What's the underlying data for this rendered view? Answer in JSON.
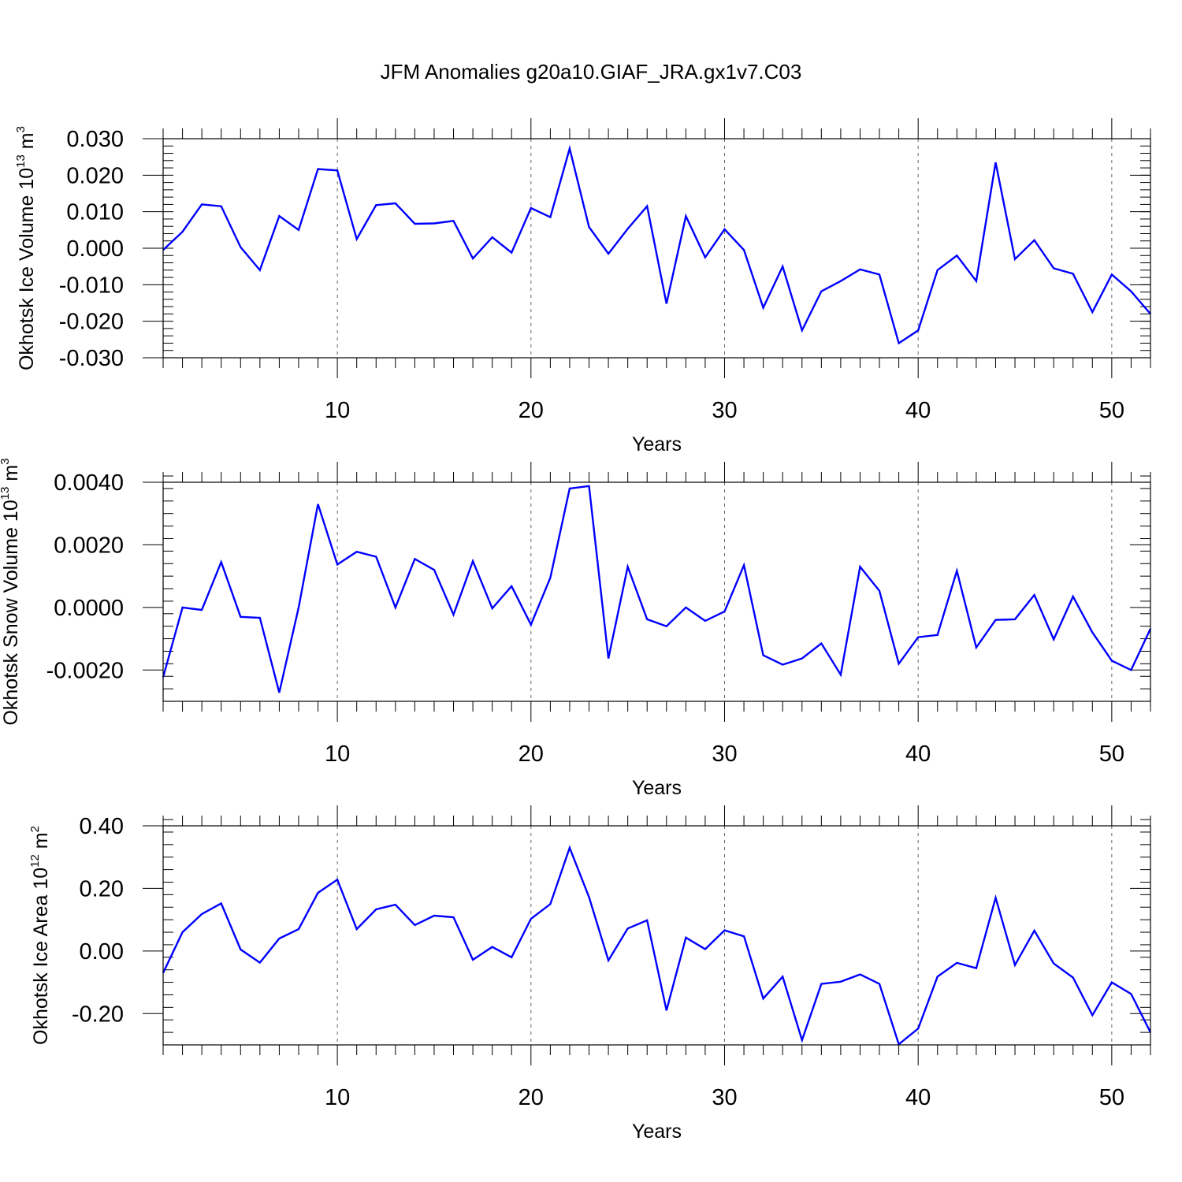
{
  "figure": {
    "title": "JFM Anomalies g20a10.GIAF_JRA.gx1v7.C03"
  },
  "chart_data": [
    {
      "type": "line",
      "ylabel_main": "Okhotsk Ice Volume 10",
      "ylabel_sup": "13",
      "ylabel_unit": " m",
      "ylabel_unit_sup": "3",
      "xlabel": "Years",
      "xlim": [
        1,
        52
      ],
      "ylim": [
        -0.03,
        0.03
      ],
      "yticks": [
        -0.03,
        -0.02,
        -0.01,
        0.0,
        0.01,
        0.02,
        0.03
      ],
      "ytick_labels": [
        "-0.030",
        "-0.020",
        "-0.010",
        "0.000",
        "0.010",
        "0.020",
        "0.030"
      ],
      "ydigits": 3,
      "yminor_step": 0.002,
      "xticks": [
        10,
        20,
        30,
        40,
        50
      ],
      "xtick_labels": [
        "10",
        "20",
        "30",
        "40",
        "50"
      ],
      "series": [
        {
          "name": "Okhotsk Ice Volume",
          "color": "#0000ff",
          "x": [
            1,
            2,
            3,
            4,
            5,
            6,
            7,
            8,
            9,
            10,
            11,
            12,
            13,
            14,
            15,
            16,
            17,
            18,
            19,
            20,
            21,
            22,
            23,
            24,
            25,
            26,
            27,
            28,
            29,
            30,
            31,
            32,
            33,
            34,
            35,
            36,
            37,
            38,
            39,
            40,
            41,
            42,
            43,
            44,
            45,
            46,
            47,
            48,
            49,
            50,
            51,
            52
          ],
          "values": [
            -0.0005,
            0.0045,
            0.012,
            0.0115,
            0.0003,
            -0.006,
            0.0088,
            0.005,
            0.0217,
            0.0213,
            0.0025,
            0.0118,
            0.0123,
            0.0067,
            0.0068,
            0.0075,
            -0.0028,
            0.003,
            -0.0012,
            0.011,
            0.0085,
            0.0273,
            0.0058,
            -0.0015,
            0.0053,
            0.0115,
            -0.0152,
            0.0088,
            -0.0025,
            0.0052,
            -0.0005,
            -0.0163,
            -0.005,
            -0.0225,
            -0.0118,
            -0.009,
            -0.0058,
            -0.0072,
            -0.026,
            -0.0225,
            -0.006,
            -0.002,
            -0.009,
            0.0235,
            -0.003,
            0.0022,
            -0.0055,
            -0.007,
            -0.0175,
            -0.0072,
            -0.0118,
            -0.018
          ]
        }
      ]
    },
    {
      "type": "line",
      "ylabel_main": "Okhotsk Snow Volume 10",
      "ylabel_sup": "13",
      "ylabel_unit": " m",
      "ylabel_unit_sup": "3",
      "xlabel": "Years",
      "xlim": [
        1,
        52
      ],
      "ylim": [
        -0.003,
        0.004
      ],
      "yticks": [
        -0.002,
        0.0,
        0.002,
        0.004
      ],
      "ytick_labels": [
        "-0.0020",
        "0.0000",
        "0.0020",
        "0.0040"
      ],
      "ydigits": 4,
      "yminor_step": 0.0004,
      "xticks": [
        10,
        20,
        30,
        40,
        50
      ],
      "xtick_labels": [
        "10",
        "20",
        "30",
        "40",
        "50"
      ],
      "series": [
        {
          "name": "Okhotsk Snow Volume",
          "color": "#0000ff",
          "x": [
            1,
            2,
            3,
            4,
            5,
            6,
            7,
            8,
            9,
            10,
            11,
            12,
            13,
            14,
            15,
            16,
            17,
            18,
            19,
            20,
            21,
            22,
            23,
            24,
            25,
            26,
            27,
            28,
            29,
            30,
            31,
            32,
            33,
            34,
            35,
            36,
            37,
            38,
            39,
            40,
            41,
            42,
            43,
            44,
            45,
            46,
            47,
            48,
            49,
            50,
            51,
            52
          ],
          "values": [
            -0.00223,
            0.0,
            -8e-05,
            0.00145,
            -0.0003,
            -0.00033,
            -0.00272,
            0.0,
            0.0033,
            0.00137,
            0.00178,
            0.00162,
            0.0,
            0.00155,
            0.0012,
            -0.00023,
            0.00148,
            -3e-05,
            0.00068,
            -0.00055,
            0.00095,
            0.0038,
            0.00388,
            -0.00163,
            0.0013,
            -0.00038,
            -0.0006,
            0.0,
            -0.00043,
            -0.00013,
            0.00135,
            -0.00153,
            -0.00183,
            -0.00163,
            -0.00115,
            -0.00215,
            0.0013,
            0.00053,
            -0.0018,
            -0.00095,
            -0.00088,
            0.00117,
            -0.00128,
            -0.0004,
            -0.00038,
            0.0004,
            -0.00102,
            0.00035,
            -0.0008,
            -0.0017,
            -0.002,
            -0.00068
          ]
        }
      ]
    },
    {
      "type": "line",
      "ylabel_main": "Okhotsk Ice Area 10",
      "ylabel_sup": "12",
      "ylabel_unit": " m",
      "ylabel_unit_sup": "2",
      "xlabel": "Years",
      "xlim": [
        1,
        52
      ],
      "ylim": [
        -0.3,
        0.4
      ],
      "yticks": [
        -0.2,
        0.0,
        0.2,
        0.4
      ],
      "ytick_labels": [
        "-0.20",
        "0.00",
        "0.20",
        "0.40"
      ],
      "ydigits": 2,
      "yminor_step": 0.04,
      "xticks": [
        10,
        20,
        30,
        40,
        50
      ],
      "xtick_labels": [
        "10",
        "20",
        "30",
        "40",
        "50"
      ],
      "series": [
        {
          "name": "Okhotsk Ice Area",
          "color": "#0000ff",
          "x": [
            1,
            2,
            3,
            4,
            5,
            6,
            7,
            8,
            9,
            10,
            11,
            12,
            13,
            14,
            15,
            16,
            17,
            18,
            19,
            20,
            21,
            22,
            23,
            24,
            25,
            26,
            27,
            28,
            29,
            30,
            31,
            32,
            33,
            34,
            35,
            36,
            37,
            38,
            39,
            40,
            41,
            42,
            43,
            44,
            45,
            46,
            47,
            48,
            49,
            50,
            51,
            52
          ],
          "values": [
            -0.07,
            0.06,
            0.118,
            0.152,
            0.005,
            -0.037,
            0.04,
            0.07,
            0.186,
            0.228,
            0.07,
            0.133,
            0.148,
            0.083,
            0.113,
            0.108,
            -0.028,
            0.013,
            -0.02,
            0.103,
            0.15,
            0.33,
            0.172,
            -0.03,
            0.072,
            0.098,
            -0.19,
            0.043,
            0.006,
            0.066,
            0.047,
            -0.152,
            -0.082,
            -0.285,
            -0.105,
            -0.098,
            -0.075,
            -0.105,
            -0.298,
            -0.248,
            -0.082,
            -0.038,
            -0.055,
            0.17,
            -0.045,
            0.065,
            -0.04,
            -0.085,
            -0.205,
            -0.1,
            -0.137,
            -0.26
          ]
        }
      ]
    }
  ]
}
